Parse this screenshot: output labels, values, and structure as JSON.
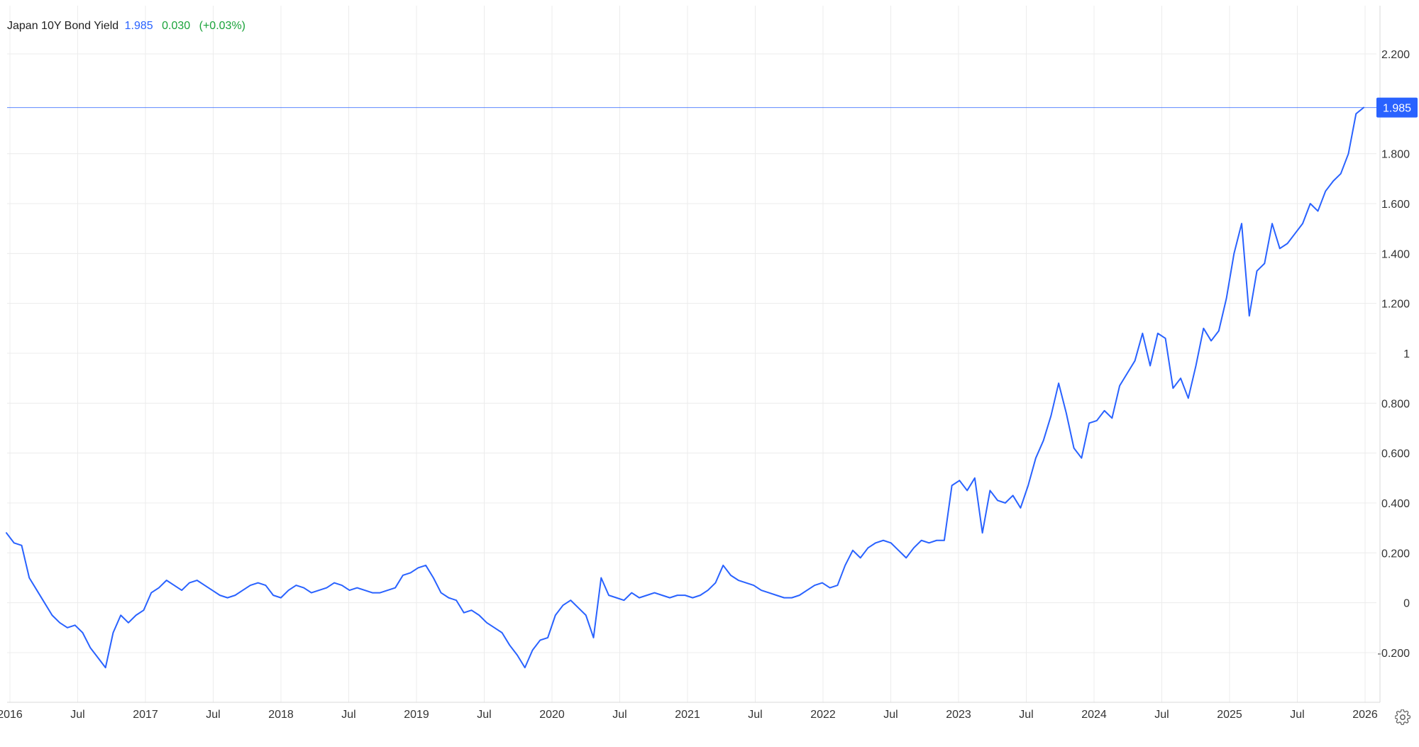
{
  "legend": {
    "name": "Japan 10Y Bond Yield",
    "price": "1.985",
    "change": "0.030",
    "change_pct": "(+0.03%)"
  },
  "current_value_label": "1.985",
  "colors": {
    "line": "#2962ff",
    "grid": "#ececec",
    "axis_text": "#333333",
    "positive_change": "#1aa33a"
  },
  "icons": {
    "settings": "gear-icon"
  },
  "chart_data": {
    "type": "line",
    "title": "",
    "xlabel": "",
    "ylabel": "",
    "ylim": [
      -0.4,
      2.4
    ],
    "x_ticks": [
      "2016",
      "Jul",
      "2017",
      "Jul",
      "2018",
      "Jul",
      "2019",
      "Jul",
      "2020",
      "Jul",
      "2021",
      "Jul",
      "2022",
      "Jul",
      "2023",
      "Jul",
      "2024",
      "Jul",
      "2025",
      "Jul",
      "2026"
    ],
    "y_ticks": [
      "2.200",
      "1.800",
      "1.600",
      "1.400",
      "1.200",
      "1",
      "0.800",
      "0.600",
      "0.400",
      "0.200",
      "0",
      "-0.200"
    ],
    "series": [
      {
        "values": [
          0.28,
          0.24,
          0.23,
          0.1,
          0.05,
          0.0,
          -0.05,
          -0.08,
          -0.1,
          -0.09,
          -0.12,
          -0.18,
          -0.22,
          -0.26,
          -0.12,
          -0.05,
          -0.08,
          -0.05,
          -0.03,
          0.04,
          0.06,
          0.09,
          0.07,
          0.05,
          0.08,
          0.09,
          0.07,
          0.05,
          0.03,
          0.02,
          0.03,
          0.05,
          0.07,
          0.08,
          0.07,
          0.03,
          0.02,
          0.05,
          0.07,
          0.06,
          0.04,
          0.05,
          0.06,
          0.08,
          0.07,
          0.05,
          0.06,
          0.05,
          0.04,
          0.04,
          0.05,
          0.06,
          0.11,
          0.12,
          0.14,
          0.15,
          0.1,
          0.04,
          0.02,
          0.01,
          -0.04,
          -0.03,
          -0.05,
          -0.08,
          -0.1,
          -0.12,
          -0.17,
          -0.21,
          -0.26,
          -0.19,
          -0.15,
          -0.14,
          -0.05,
          -0.01,
          0.01,
          -0.02,
          -0.05,
          -0.14,
          0.1,
          0.03,
          0.02,
          0.01,
          0.04,
          0.02,
          0.03,
          0.04,
          0.03,
          0.02,
          0.03,
          0.03,
          0.02,
          0.03,
          0.05,
          0.08,
          0.15,
          0.11,
          0.09,
          0.08,
          0.07,
          0.05,
          0.04,
          0.03,
          0.02,
          0.02,
          0.03,
          0.05,
          0.07,
          0.08,
          0.06,
          0.07,
          0.15,
          0.21,
          0.18,
          0.22,
          0.24,
          0.25,
          0.24,
          0.21,
          0.18,
          0.22,
          0.25,
          0.24,
          0.25,
          0.25,
          0.47,
          0.49,
          0.45,
          0.5,
          0.28,
          0.45,
          0.41,
          0.4,
          0.43,
          0.38,
          0.47,
          0.58,
          0.65,
          0.75,
          0.88,
          0.76,
          0.62,
          0.58,
          0.72,
          0.73,
          0.77,
          0.74,
          0.87,
          0.92,
          0.97,
          1.08,
          0.95,
          1.08,
          1.06,
          0.86,
          0.9,
          0.82,
          0.95,
          1.1,
          1.05,
          1.09,
          1.22,
          1.4,
          1.52,
          1.15,
          1.33,
          1.36,
          1.52,
          1.42,
          1.44,
          1.48,
          1.52,
          1.6,
          1.57,
          1.65,
          1.69,
          1.72,
          1.8,
          1.96,
          1.985
        ]
      }
    ]
  }
}
